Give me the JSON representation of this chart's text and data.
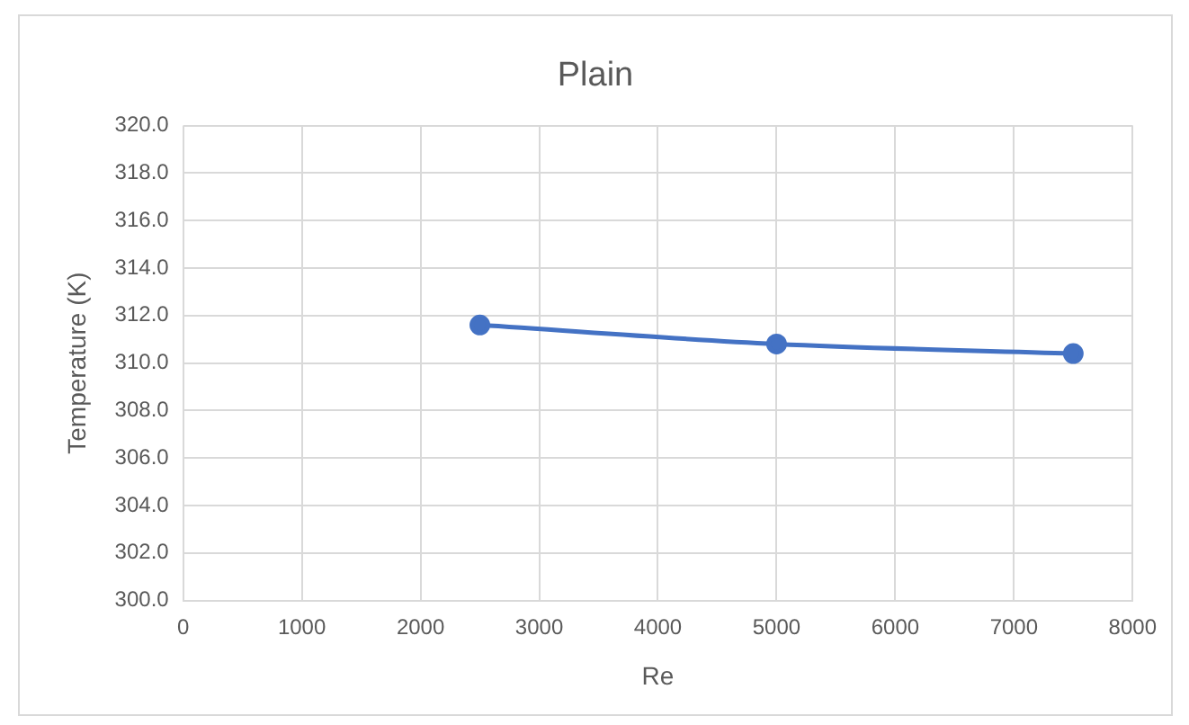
{
  "chart_data": {
    "type": "line",
    "title": "Plain",
    "xlabel": "Re",
    "ylabel": "Temperature (K)",
    "x": [
      2500,
      5000,
      7500
    ],
    "series": [
      {
        "color": "#4472c4",
        "values": [
          311.6,
          310.8,
          310.4
        ]
      }
    ],
    "xlim": [
      0,
      8000
    ],
    "xticks": [
      0,
      1000,
      2000,
      3000,
      4000,
      5000,
      6000,
      7000,
      8000
    ],
    "ylim": [
      300,
      320
    ],
    "yticks": [
      {
        "value": 300,
        "label": "300.0"
      },
      {
        "value": 302,
        "label": "302.0"
      },
      {
        "value": 304,
        "label": "304.0"
      },
      {
        "value": 306,
        "label": "306.0"
      },
      {
        "value": 308,
        "label": "308.0"
      },
      {
        "value": 310,
        "label": "310.0"
      },
      {
        "value": 312,
        "label": "312.0"
      },
      {
        "value": 314,
        "label": "314.0"
      },
      {
        "value": 316,
        "label": "316.0"
      },
      {
        "value": 318,
        "label": "318.0"
      },
      {
        "value": 320,
        "label": "320.0"
      }
    ],
    "grid": true,
    "legend": false,
    "marker": "circle",
    "line_style": "solid"
  }
}
